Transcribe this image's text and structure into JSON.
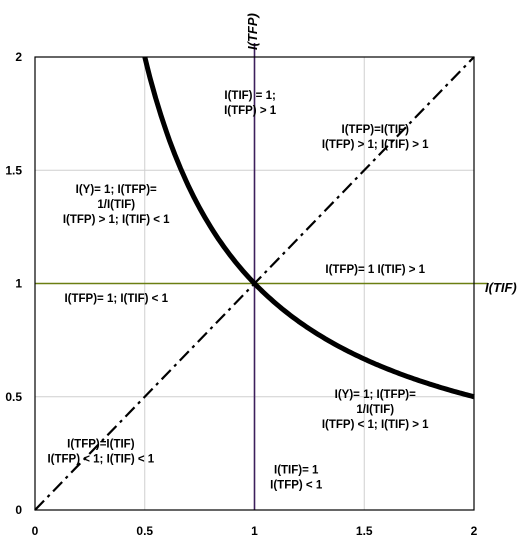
{
  "chart_data": {
    "type": "line",
    "xlabel": "I(TIF)",
    "ylabel": "I(TFP)",
    "xlim": [
      0,
      2
    ],
    "ylim": [
      0,
      2
    ],
    "x_ticks": [
      "0",
      "0.5",
      "1",
      "1.5",
      "2"
    ],
    "y_ticks": [
      "0",
      "0.5",
      "1",
      "1.5",
      "2"
    ],
    "grid": true,
    "colors": {
      "curve": "#000000",
      "diagonal": "#000000",
      "horizontal_line": "#6b7f12",
      "vertical_line": "#3d1f5c",
      "grid": "#cfcfcf"
    },
    "series": [
      {
        "id": "hyperbola",
        "style": "solid-thick",
        "x": [
          0.5,
          0.6,
          0.7,
          0.8,
          0.9,
          1.0,
          1.1,
          1.25,
          1.4,
          1.6,
          1.8,
          2.0
        ],
        "y": [
          2.0,
          1.667,
          1.429,
          1.25,
          1.111,
          1.0,
          0.909,
          0.8,
          0.714,
          0.625,
          0.556,
          0.5
        ]
      },
      {
        "id": "diagonal",
        "style": "dash-dot",
        "x": [
          0,
          2
        ],
        "y": [
          0,
          2
        ]
      },
      {
        "id": "horizontal",
        "style": "solid",
        "x": [
          0,
          2
        ],
        "y": [
          1,
          1
        ]
      },
      {
        "id": "vertical",
        "style": "solid",
        "x": [
          1,
          1
        ],
        "y": [
          0,
          2
        ]
      }
    ],
    "annotations": [
      {
        "x": 0.98,
        "y": 1.8,
        "lines": [
          "I(TIF) = 1;",
          "I(TFP) > 1"
        ]
      },
      {
        "x": 1.55,
        "y": 1.65,
        "lines": [
          "I(TFP)=I(TIF)",
          "I(TFP) > 1; I(TIF) > 1"
        ]
      },
      {
        "x": 0.37,
        "y": 1.35,
        "lines": [
          "I(Y)= 1;  I(TFP)=",
          "1/I(TIF)",
          "I(TFP) > 1; I(TIF) < 1"
        ]
      },
      {
        "x": 1.55,
        "y": 1.065,
        "lines": [
          "I(TFP)= 1 I(TIF) > 1"
        ]
      },
      {
        "x": 0.37,
        "y": 0.935,
        "lines": [
          "I(TFP)= 1; I(TIF) < 1"
        ]
      },
      {
        "x": 1.55,
        "y": 0.445,
        "lines": [
          "I(Y)= 1;  I(TFP)=",
          "1/I(TIF)",
          "I(TFP) < 1; I(TIF) > 1"
        ]
      },
      {
        "x": 0.3,
        "y": 0.26,
        "lines": [
          "I(TFP)=I(TIF)",
          "I(TFP) < 1; I(TIF) < 1"
        ]
      },
      {
        "x": 1.19,
        "y": 0.145,
        "lines": [
          "I(TIF)= 1",
          "I(TFP) < 1"
        ]
      }
    ]
  }
}
